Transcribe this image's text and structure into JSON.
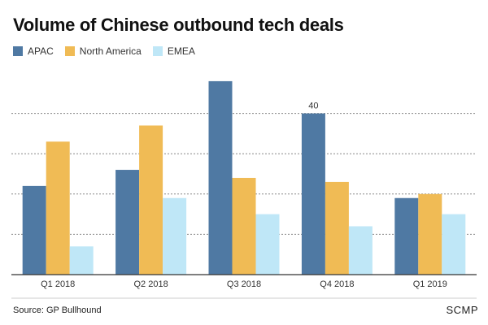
{
  "title": "Volume of Chinese outbound tech deals",
  "source": "Source: GP Bullhound",
  "brand": "SCMP",
  "colors": {
    "APAC": "#4f79a3",
    "North America": "#f0bb55",
    "EMEA": "#bfe7f7",
    "grid": "#888888",
    "baseline": "#333333"
  },
  "chart_data": {
    "type": "bar",
    "title": "Volume of Chinese outbound tech deals",
    "xlabel": "",
    "ylabel": "",
    "categories": [
      "Q1 2018",
      "Q2 2018",
      "Q3 2018",
      "Q4 2018",
      "Q1 2019"
    ],
    "series": [
      {
        "name": "APAC",
        "values": [
          22,
          26,
          48,
          40,
          19
        ]
      },
      {
        "name": "North America",
        "values": [
          33,
          37,
          24,
          23,
          20
        ]
      },
      {
        "name": "EMEA",
        "values": [
          7,
          19,
          15,
          12,
          15
        ]
      }
    ],
    "ylim": [
      0,
      50
    ],
    "grid": true,
    "y_tick_labels_shown": false,
    "annotations": [
      {
        "category": "Q4 2018",
        "series": "APAC",
        "text": "40"
      }
    ],
    "legend_position": "top-left"
  }
}
